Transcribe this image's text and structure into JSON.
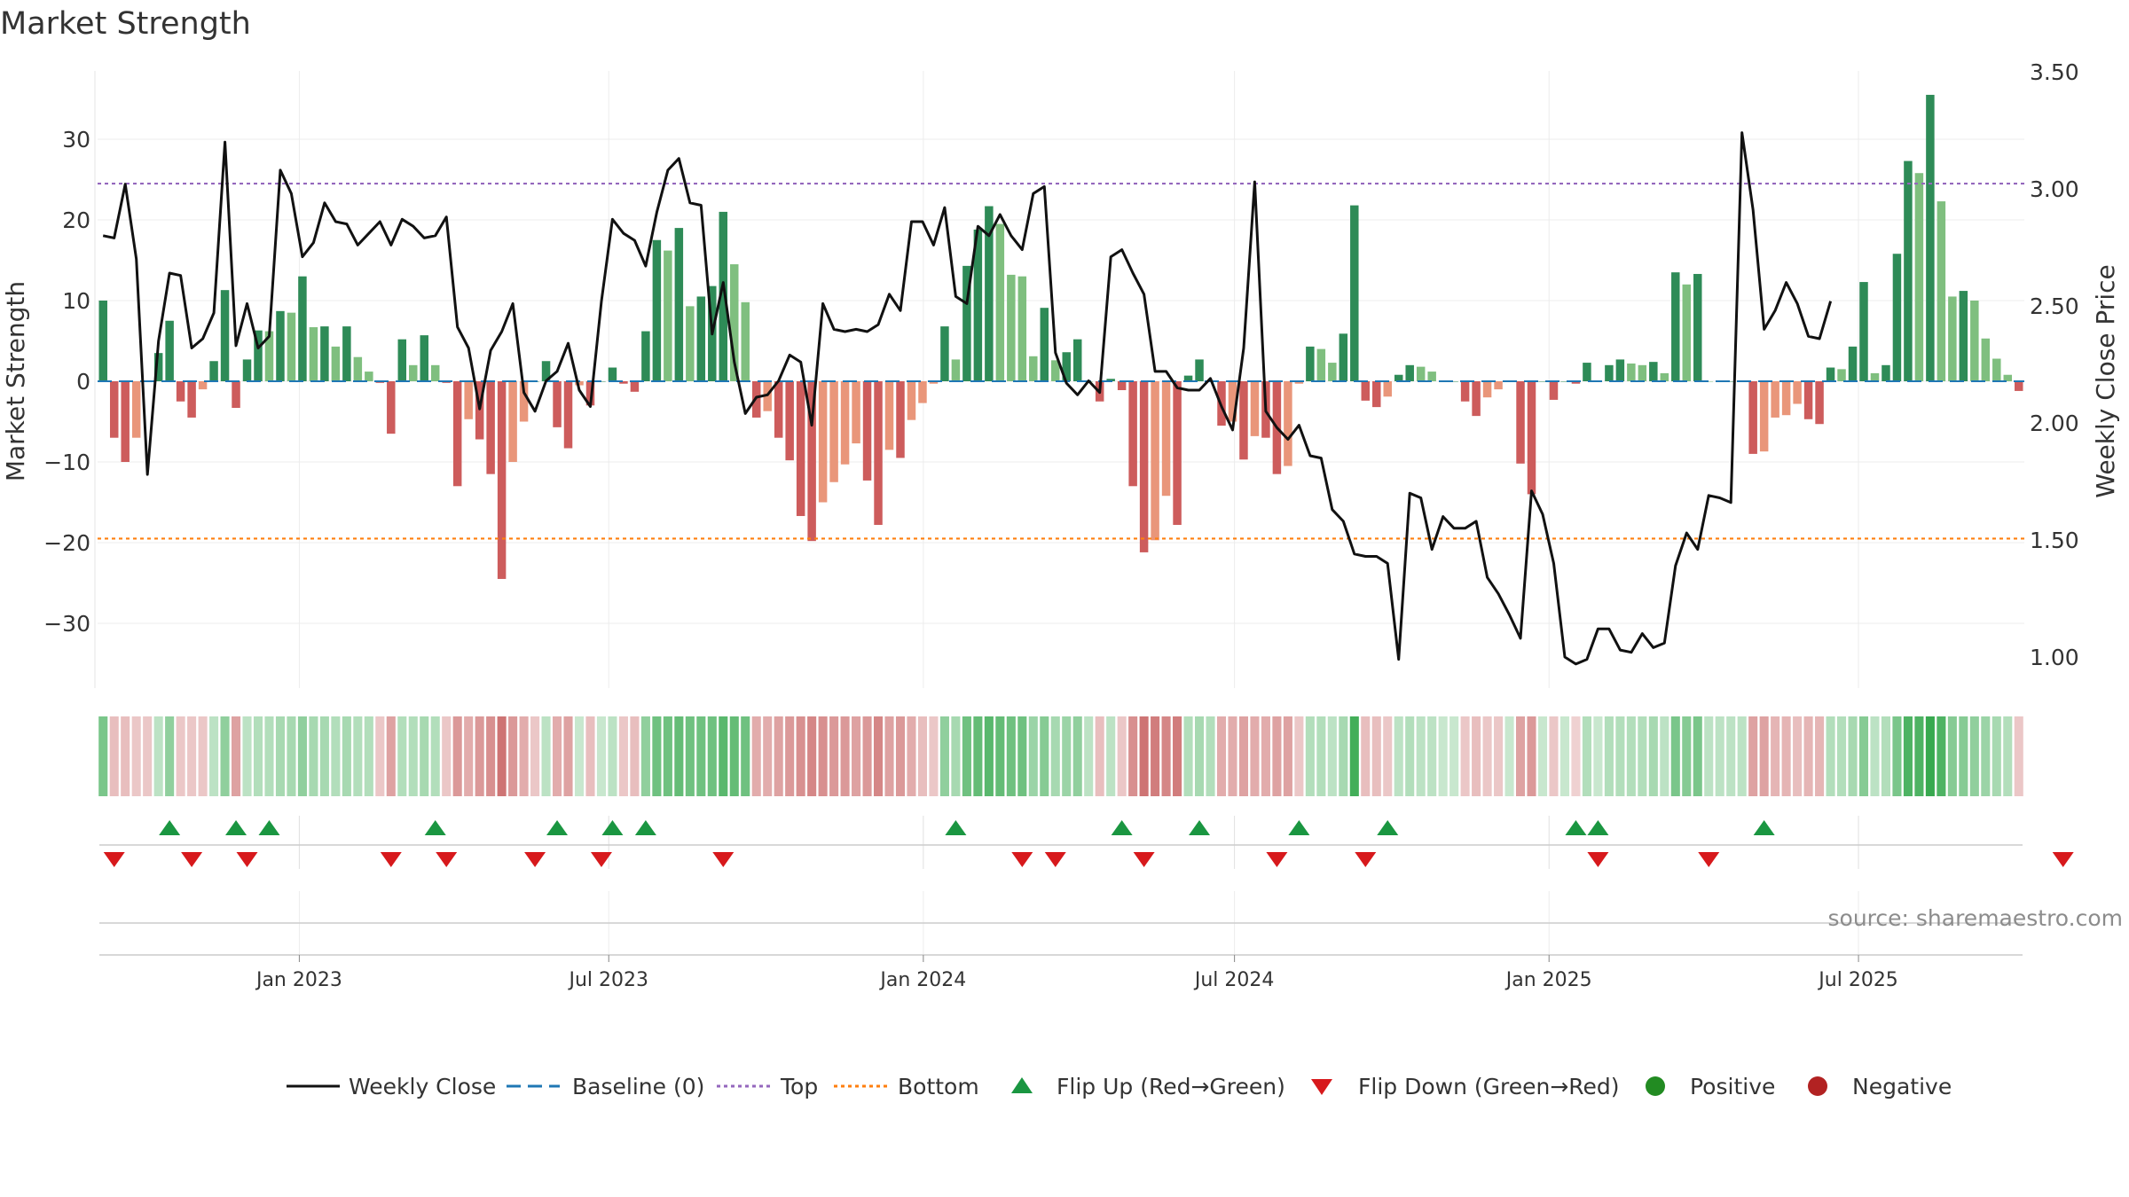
{
  "title": "Market Strength",
  "source": "source: sharemaestro.com",
  "chart_data": {
    "type": "bar",
    "ylabel": "Market Strength",
    "ylabel_right": "Weekly Close Price",
    "ylim": [
      -38,
      38
    ],
    "ylim_right": [
      0.85,
      3.5
    ],
    "yticks": [
      -30,
      -20,
      -10,
      0,
      10,
      20,
      30
    ],
    "yticklabels": [
      "−30",
      "−20",
      "−10",
      "0",
      "10",
      "20",
      "30"
    ],
    "yticks_right": [
      1.0,
      1.5,
      2.0,
      2.5,
      3.0,
      3.5
    ],
    "yticklabels_right": [
      "1.00",
      "1.50",
      "2.00",
      "2.50",
      "3.00",
      "3.50"
    ],
    "top_level": 24.5,
    "bottom_level": -19.5,
    "x_start": "2022-09-05",
    "x_end": "2025-10-06",
    "xticks": [
      "2023-01-01",
      "2023-07-01",
      "2024-01-01",
      "2024-07-01",
      "2025-01-01",
      "2025-07-01"
    ],
    "xticklabels": [
      "Jan 2023",
      "Jul 2023",
      "Jan 2024",
      "Jul 2024",
      "Jan 2025",
      "Jul 2025"
    ],
    "strength": [
      10,
      -7,
      -10,
      -7,
      0,
      3.5,
      7.5,
      -2.5,
      -4.5,
      -1,
      2.5,
      11.3,
      -3.3,
      2.7,
      6.3,
      6.2,
      8.7,
      8.5,
      13,
      6.7,
      6.8,
      4.3,
      6.8,
      3,
      1.2,
      -0.2,
      -6.5,
      5.2,
      2,
      5.7,
      2,
      -0.2,
      -13,
      -4.7,
      -7.2,
      -11.5,
      -24.5,
      -10,
      -5,
      0,
      2.5,
      -5.7,
      -8.3,
      -0.5,
      -3,
      0,
      1.7,
      -0.3,
      -1.3,
      6.2,
      17.5,
      16.2,
      19,
      9.3,
      10.5,
      11.8,
      21,
      14.5,
      9.8,
      -4.5,
      -3.7,
      -7,
      -9.8,
      -16.7,
      -19.8,
      -15,
      -12.5,
      -10.3,
      -7.7,
      -12.3,
      -17.8,
      -8.5,
      -9.5,
      -4.8,
      -2.7,
      -0.3,
      6.8,
      2.7,
      14.3,
      18.8,
      21.7,
      19.5,
      13.2,
      13,
      3.1,
      9.1,
      2.6,
      3.6,
      5.2,
      0,
      -2.5,
      0.3,
      -1.1,
      -13,
      -21.2,
      -19.7,
      -14.2,
      -17.8,
      0.7,
      2.7,
      0,
      -5.5,
      -5,
      -9.7,
      -6.8,
      -7,
      -11.5,
      -10.5,
      -0.3,
      4.3,
      4,
      2.3,
      5.9,
      21.8,
      -2.4,
      -3.2,
      -1.9,
      0.8,
      2,
      1.8,
      1.2,
      0,
      0,
      -2.5,
      -4.3,
      -2,
      -1,
      0,
      -10.2,
      -14,
      0,
      -2.3,
      0,
      -0.3,
      2.3,
      0,
      2,
      2.7,
      2.2,
      2,
      2.4,
      1,
      13.5,
      12,
      13.3,
      0,
      0,
      0,
      0,
      -9,
      -8.7,
      -4.5,
      -4.2,
      -2.8,
      -4.7,
      -5.3,
      1.7,
      1.5,
      4.3,
      12.3,
      1,
      2,
      15.8,
      27.3,
      25.8,
      35.5,
      22.3,
      10.5,
      11.2,
      10,
      5.3,
      2.8,
      0.8,
      -1.2
    ],
    "weekly_close": [
      2.8,
      2.79,
      3.02,
      2.7,
      1.78,
      2.35,
      2.64,
      2.63,
      2.32,
      2.36,
      2.47,
      3.2,
      2.33,
      2.51,
      2.32,
      2.37,
      3.08,
      2.98,
      2.71,
      2.77,
      2.94,
      2.86,
      2.85,
      2.76,
      2.81,
      2.86,
      2.76,
      2.87,
      2.84,
      2.79,
      2.8,
      2.88,
      2.41,
      2.32,
      2.06,
      2.31,
      2.39,
      2.51,
      2.13,
      2.05,
      2.18,
      2.22,
      2.34,
      2.14,
      2.07,
      2.52,
      2.87,
      2.81,
      2.78,
      2.67,
      2.9,
      3.08,
      3.13,
      2.94,
      2.93,
      2.38,
      2.6,
      2.26,
      2.04,
      2.11,
      2.12,
      2.18,
      2.29,
      2.26,
      1.99,
      2.51,
      2.4,
      2.39,
      2.4,
      2.39,
      2.42,
      2.55,
      2.48,
      2.86,
      2.86,
      2.76,
      2.92,
      2.54,
      2.51,
      2.84,
      2.8,
      2.89,
      2.8,
      2.74,
      2.98,
      3.01,
      2.3,
      2.17,
      2.12,
      2.18,
      2.13,
      2.71,
      2.74,
      2.64,
      2.55,
      2.22,
      2.22,
      2.15,
      2.14,
      2.14,
      2.19,
      2.07,
      1.97,
      2.32,
      3.03,
      2.05,
      1.98,
      1.93,
      1.99,
      1.86,
      1.85,
      1.63,
      1.58,
      1.44,
      1.43,
      1.43,
      1.4,
      0.99,
      1.7,
      1.68,
      1.46,
      1.6,
      1.55,
      1.55,
      1.58,
      1.34,
      1.27,
      1.18,
      1.08,
      1.71,
      1.61,
      1.4,
      1.0,
      0.97,
      0.99,
      1.12,
      1.12,
      1.03,
      1.02,
      1.1,
      1.04,
      1.06,
      1.39,
      1.53,
      1.46,
      1.69,
      1.68,
      1.66,
      3.24,
      2.91,
      2.4,
      2.48,
      2.6,
      2.51,
      2.37,
      2.36,
      2.52
    ],
    "strip": [
      0.6,
      -0.35,
      -0.35,
      -0.3,
      -0.3,
      0.3,
      0.5,
      -0.3,
      -0.3,
      -0.3,
      0.3,
      0.5,
      -0.5,
      0.3,
      0.35,
      0.35,
      0.4,
      0.4,
      0.5,
      0.4,
      0.4,
      0.35,
      0.4,
      0.35,
      0.35,
      -0.3,
      -0.5,
      0.35,
      0.35,
      0.4,
      0.35,
      -0.3,
      -0.55,
      -0.45,
      -0.55,
      -0.6,
      -0.75,
      -0.55,
      -0.45,
      -0.3,
      0.3,
      -0.45,
      -0.5,
      0.25,
      -0.35,
      0.25,
      0.3,
      -0.3,
      -0.35,
      0.5,
      0.65,
      0.65,
      0.7,
      0.65,
      0.65,
      0.65,
      0.75,
      0.7,
      0.65,
      -0.45,
      -0.45,
      -0.5,
      -0.55,
      -0.6,
      -0.65,
      -0.6,
      -0.55,
      -0.55,
      -0.5,
      -0.55,
      -0.65,
      -0.5,
      -0.55,
      -0.45,
      -0.35,
      -0.3,
      0.5,
      0.4,
      0.65,
      0.7,
      0.75,
      0.7,
      0.65,
      0.65,
      0.45,
      0.55,
      0.4,
      0.45,
      0.5,
      0.3,
      -0.35,
      0.3,
      -0.3,
      -0.6,
      -0.75,
      -0.7,
      -0.65,
      -0.7,
      0.35,
      0.4,
      0.35,
      -0.45,
      -0.45,
      -0.5,
      -0.45,
      -0.45,
      -0.5,
      -0.5,
      -0.3,
      0.35,
      0.35,
      0.3,
      0.4,
      0.85,
      -0.35,
      -0.35,
      -0.3,
      0.3,
      0.35,
      0.3,
      0.3,
      0.25,
      0.25,
      -0.3,
      -0.35,
      -0.3,
      -0.3,
      0.25,
      -0.5,
      -0.55,
      0.25,
      -0.3,
      0.25,
      -0.25,
      0.35,
      0.25,
      0.35,
      0.35,
      0.35,
      0.35,
      0.4,
      0.3,
      0.6,
      0.55,
      0.6,
      0.3,
      0.3,
      0.3,
      0.3,
      -0.5,
      -0.5,
      -0.4,
      -0.4,
      -0.35,
      -0.4,
      -0.4,
      0.35,
      0.35,
      0.4,
      0.55,
      0.3,
      0.35,
      0.6,
      0.8,
      0.8,
      0.9,
      0.8,
      0.55,
      0.55,
      0.5,
      0.45,
      0.4,
      0.35,
      -0.3
    ],
    "flip_up_idx": [
      6,
      12,
      15,
      30,
      41,
      46,
      49,
      77,
      92,
      99,
      108,
      116,
      133,
      135,
      150
    ],
    "flip_down_idx": [
      1,
      8,
      13,
      26,
      31,
      39,
      45,
      56,
      83,
      86,
      94,
      106,
      114,
      135,
      145,
      177
    ],
    "legend": [
      "Weekly Close",
      "Baseline (0)",
      "Top",
      "Bottom",
      "Flip Up (Red→Green)",
      "Flip Down (Green→Red)",
      "Positive",
      "Negative"
    ],
    "colors": {
      "pos_dark": "#2e8b57",
      "pos_light": "#7fbf7f",
      "neg_dark": "#cd5c5c",
      "neg_light": "#e9967a",
      "close_line": "#111111",
      "baseline": "#1f77b4",
      "top": "#9467bd",
      "bottom": "#ff7f0e",
      "flip_up": "#1a9641",
      "flip_down": "#d7191c",
      "positive_dot": "#228b22",
      "negative_dot": "#b22222"
    }
  }
}
